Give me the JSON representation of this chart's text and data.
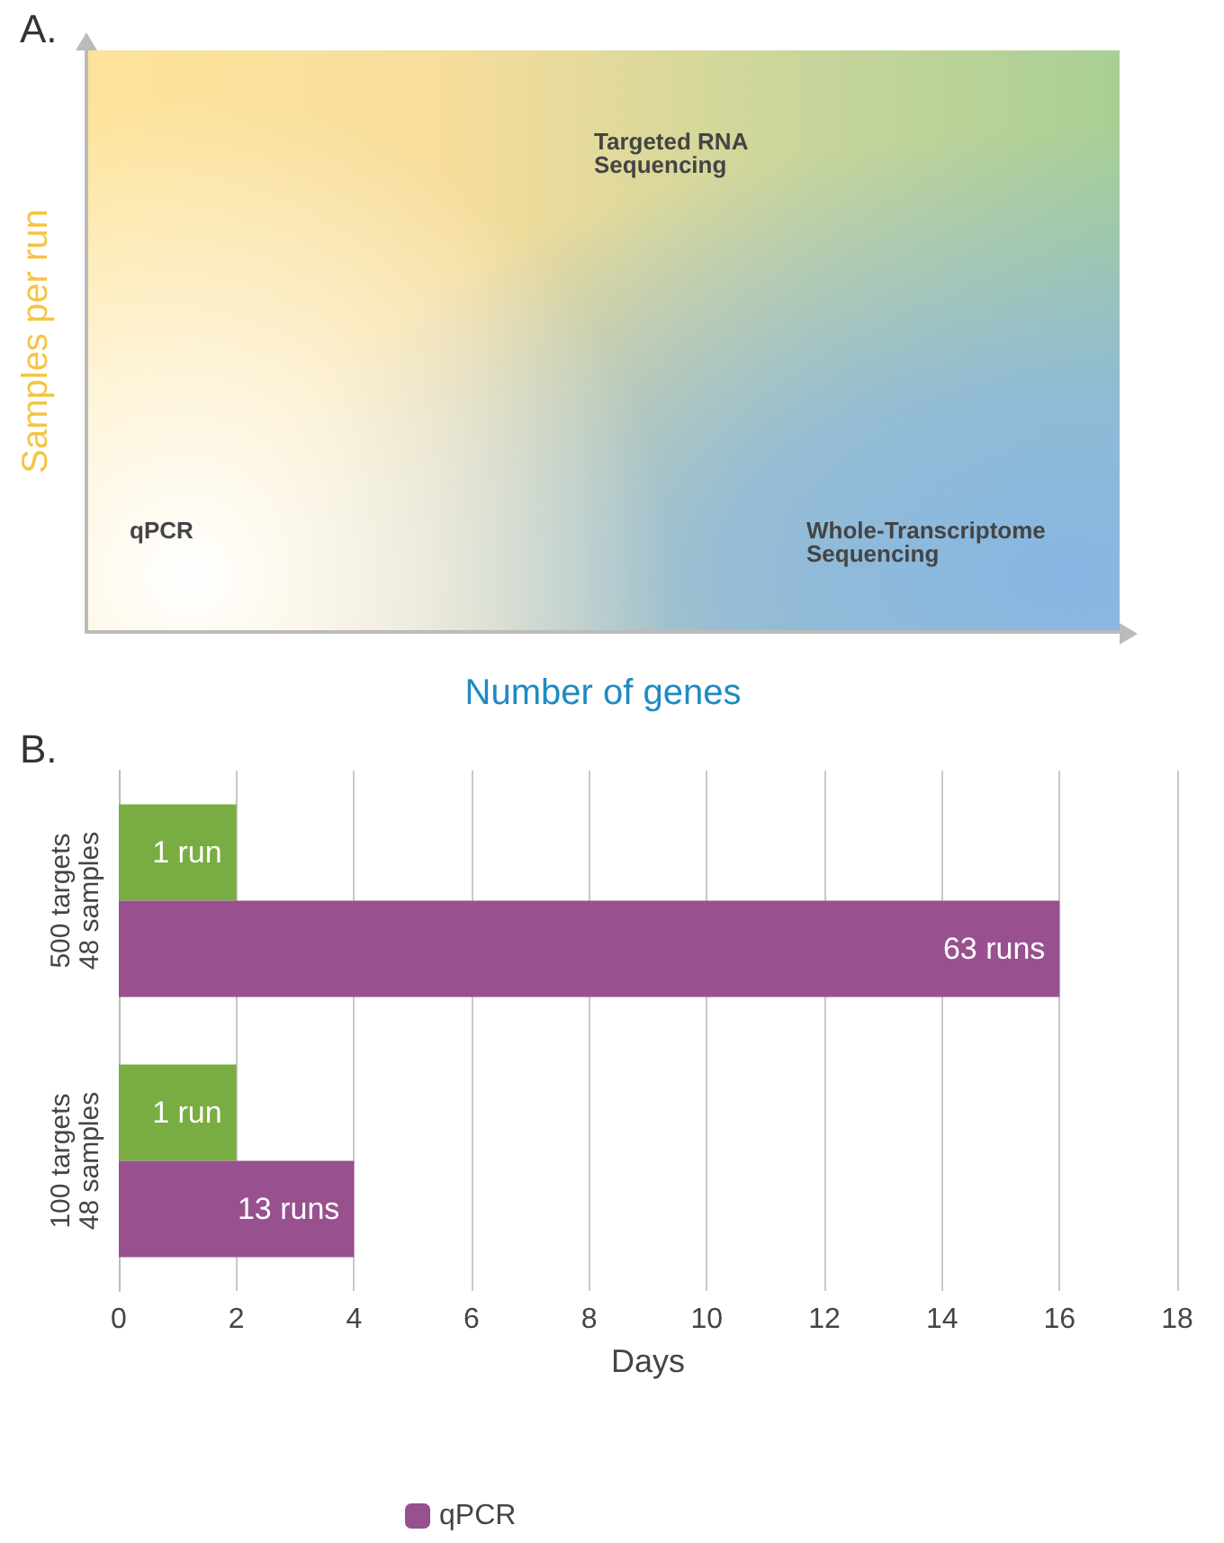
{
  "chart_data": [
    {
      "type": "other",
      "title": "A.",
      "xlabel": "Number of genes",
      "ylabel": "Samples per run",
      "annotations": [
        "Targeted RNA\nSequencing",
        "qPCR",
        "Whole-Transcriptome\nSequencing"
      ]
    },
    {
      "type": "bar",
      "title": "B.",
      "orientation": "horizontal",
      "categories": [
        "500 targets\n48 samples",
        "100 targets\n48 samples"
      ],
      "series": [
        {
          "color": "#7aad41",
          "values": [
            2,
            2
          ]
        },
        {
          "name": "qPCR",
          "color": "#98508f",
          "values": [
            16,
            4
          ]
        }
      ],
      "annotations": [
        {
          "text": "1 run",
          "x": 2,
          "y": "500 targets\n48 samples"
        },
        {
          "text": "63 runs",
          "x": 16,
          "y": "500 targets\n48 samples"
        },
        {
          "text": "1 run",
          "x": 2,
          "y": "100 targets\n48 samples"
        },
        {
          "text": "13 runs",
          "x": 4,
          "y": "100 targets\n48 samples"
        }
      ],
      "xlabel": "Days",
      "xlim": [
        0,
        18
      ],
      "xticks": [
        0,
        2,
        4,
        6,
        8,
        10,
        12,
        14,
        16,
        18
      ],
      "grid": "x",
      "legend": "bottom"
    }
  ]
}
